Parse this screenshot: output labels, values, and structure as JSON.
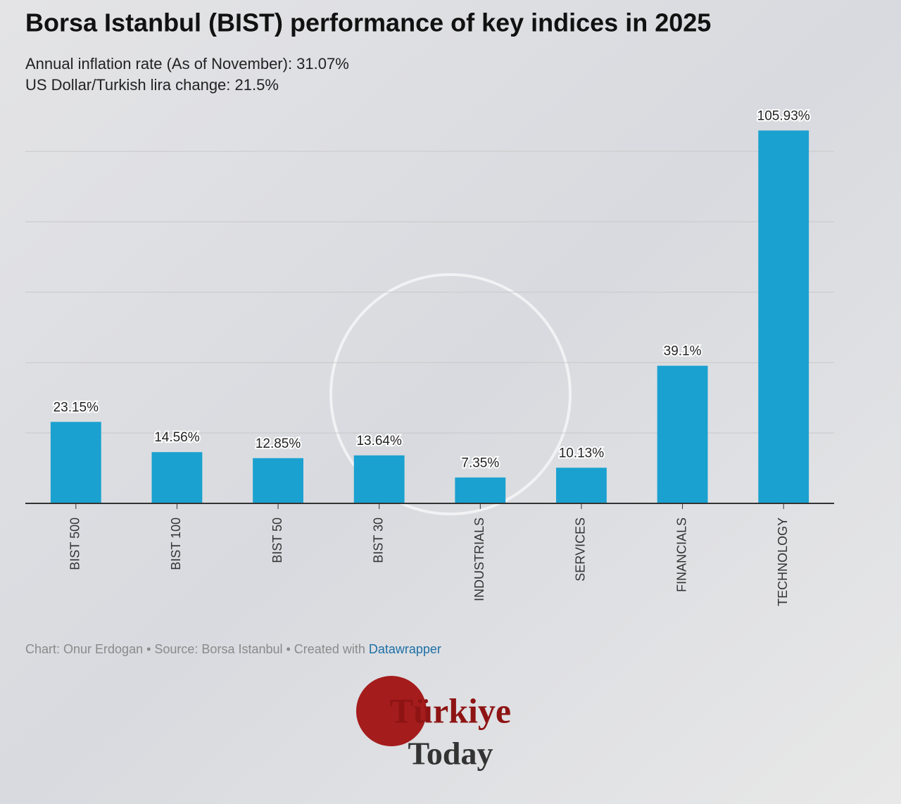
{
  "chart_data": {
    "type": "bar",
    "title": "Borsa Istanbul (BIST) performance of key indices in 2025",
    "subtitle": [
      "Annual inflation rate (As of November): 31.07%",
      "US Dollar/Turkish lira change: 21.5%"
    ],
    "categories": [
      "BIST 500",
      "BIST 100",
      "BIST 50",
      "BIST 30",
      "INDUSTRIALS",
      "SERVICES",
      "FINANCIALS",
      "TECHNOLOGY"
    ],
    "values": [
      23.15,
      14.56,
      12.85,
      13.64,
      7.35,
      10.13,
      39.1,
      105.93
    ],
    "value_labels": [
      "23.15%",
      "14.56%",
      "12.85%",
      "13.64%",
      "7.35%",
      "10.13%",
      "39.1%",
      "105.93%"
    ],
    "color": "#1aa1d0",
    "ylim": [
      0,
      110
    ],
    "yticks": [
      0,
      20,
      40,
      60,
      80,
      100
    ],
    "grid": true,
    "footer": {
      "text": "Chart: Onur Erdogan • Source: Borsa Istanbul • Created with",
      "link": "Datawrapper"
    }
  },
  "logo": {
    "line1": "Türkiye",
    "line2": "Today"
  }
}
